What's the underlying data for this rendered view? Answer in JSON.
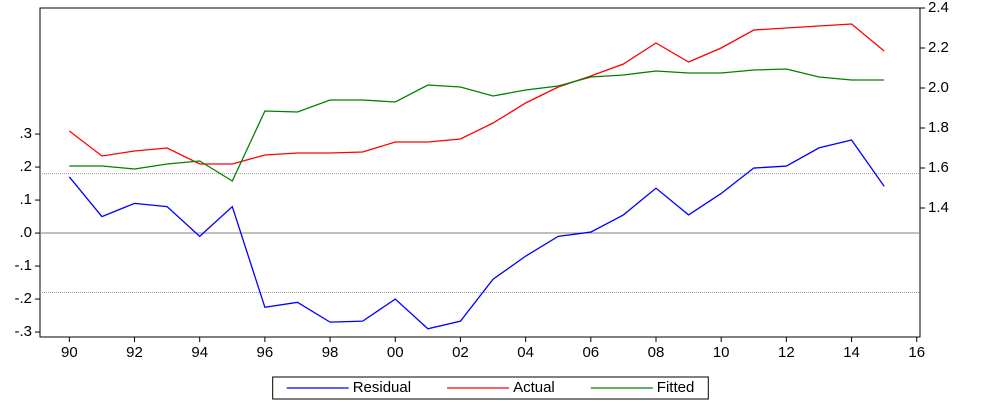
{
  "chart_data": {
    "type": "line",
    "x": [
      1990,
      1991,
      1992,
      1993,
      1994,
      1995,
      1996,
      1997,
      1998,
      1999,
      2000,
      2001,
      2002,
      2003,
      2004,
      2005,
      2006,
      2007,
      2008,
      2009,
      2010,
      2011,
      2012,
      2013,
      2014,
      2015
    ],
    "xlim": [
      1989.1,
      2016.1
    ],
    "xticks": [
      {
        "value": 1990,
        "label": "90"
      },
      {
        "value": 1992,
        "label": "92"
      },
      {
        "value": 1994,
        "label": "94"
      },
      {
        "value": 1996,
        "label": "96"
      },
      {
        "value": 1998,
        "label": "98"
      },
      {
        "value": 2000,
        "label": "00"
      },
      {
        "value": 2002,
        "label": "02"
      },
      {
        "value": 2004,
        "label": "04"
      },
      {
        "value": 2006,
        "label": "06"
      },
      {
        "value": 2008,
        "label": "08"
      },
      {
        "value": 2010,
        "label": "10"
      },
      {
        "value": 2012,
        "label": "12"
      },
      {
        "value": 2014,
        "label": "14"
      },
      {
        "value": 2016,
        "label": "16"
      }
    ],
    "ylim": [
      -0.315,
      0.682
    ],
    "yticks": [
      {
        "value": -0.3,
        "label": "-.3"
      },
      {
        "value": -0.2,
        "label": "-.2"
      },
      {
        "value": -0.1,
        "label": "-.1"
      },
      {
        "value": 0,
        "label": ".0"
      },
      {
        "value": 0.1,
        "label": ".1"
      },
      {
        "value": 0.2,
        "label": ".2"
      },
      {
        "value": 0.3,
        "label": ".3"
      }
    ],
    "y2lim": [
      0.755,
      2.4
    ],
    "y2ticks": [
      1.4,
      1.6,
      1.8,
      {
        "value": 2.0,
        "label": "2.0"
      },
      2.2,
      2.4
    ],
    "reference_lines": [
      {
        "value": 0,
        "style": "solid"
      },
      {
        "value": 0.18,
        "style": "dotted"
      },
      {
        "value": -0.18,
        "style": "dotted"
      }
    ],
    "legend": "bottom",
    "series": [
      {
        "name": "Residual",
        "color": "#0000ff",
        "values": [
          0.17,
          0.05,
          0.09,
          0.08,
          -0.01,
          0.08,
          -0.225,
          -0.21,
          -0.27,
          -0.267,
          -0.2,
          -0.29,
          -0.267,
          -0.14,
          -0.07,
          -0.01,
          0.003,
          0.055,
          0.136,
          0.055,
          0.12,
          0.197,
          0.203,
          0.258,
          0.282,
          0.142
        ]
      },
      {
        "name": "Actual",
        "color": "#ff0000",
        "axis": "y2",
        "values": [
          1.785,
          1.66,
          1.685,
          1.7,
          1.62,
          1.62,
          1.665,
          1.675,
          1.675,
          1.68,
          1.73,
          1.73,
          1.745,
          1.825,
          1.925,
          2.005,
          2.06,
          2.12,
          2.225,
          2.13,
          2.2,
          2.29,
          2.3,
          2.31,
          2.32,
          2.185
        ]
      },
      {
        "name": "Fitted",
        "color": "#008000",
        "axis": "y2",
        "values": [
          1.61,
          1.61,
          1.595,
          1.62,
          1.635,
          1.535,
          1.885,
          1.88,
          1.94,
          1.94,
          1.93,
          2.015,
          2.005,
          1.96,
          1.99,
          2.01,
          2.055,
          2.065,
          2.085,
          2.075,
          2.075,
          2.09,
          2.095,
          2.055,
          2.04,
          2.04
        ]
      }
    ]
  }
}
